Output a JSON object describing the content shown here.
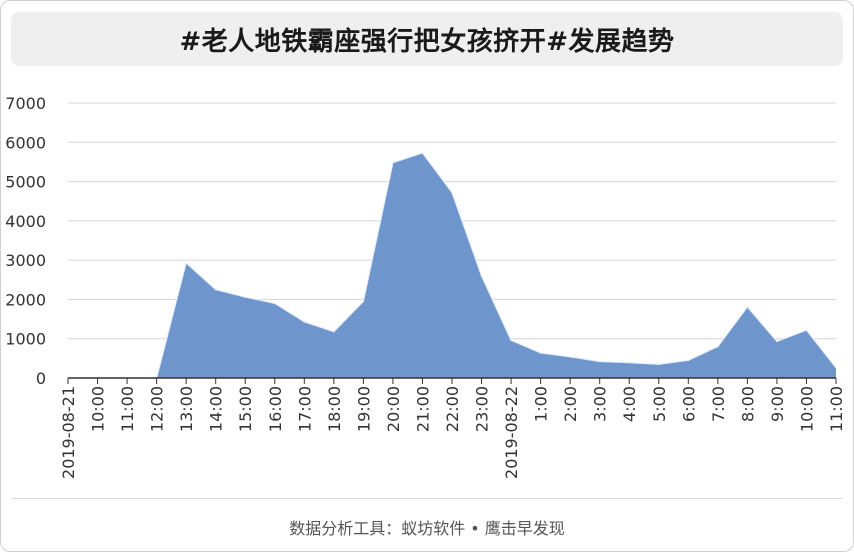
{
  "title": "#老人地铁霸座强行把女孩挤开#发展趋势",
  "footer": "数据分析工具：蚁坊软件 • 鹰击早发现",
  "colors": {
    "area_fill": "#6f96cc",
    "area_stroke": "#e8eef8",
    "grid": "#d4d4d4",
    "axis": "#333333"
  },
  "chart_data": {
    "type": "area",
    "title": "#老人地铁霸座强行把女孩挤开#发展趋势",
    "xlabel": "",
    "ylabel": "",
    "ylim": [
      0,
      7000
    ],
    "yticks": [
      0,
      1000,
      2000,
      3000,
      4000,
      5000,
      6000,
      7000
    ],
    "grid": true,
    "legend": "none",
    "categories": [
      "2019-08-21",
      "10:00",
      "11:00",
      "12:00",
      "13:00",
      "14:00",
      "15:00",
      "16:00",
      "17:00",
      "18:00",
      "19:00",
      "20:00",
      "21:00",
      "22:00",
      "23:00",
      "2019-08-22",
      "1:00",
      "2:00",
      "3:00",
      "4:00",
      "5:00",
      "6:00",
      "7:00",
      "8:00",
      "9:00",
      "10:00",
      "11:00"
    ],
    "values": [
      0,
      10,
      5,
      0,
      2930,
      2250,
      2060,
      1900,
      1430,
      1180,
      1950,
      5480,
      5730,
      4720,
      2600,
      960,
      640,
      540,
      420,
      390,
      350,
      450,
      800,
      1810,
      930,
      1220,
      260
    ]
  }
}
